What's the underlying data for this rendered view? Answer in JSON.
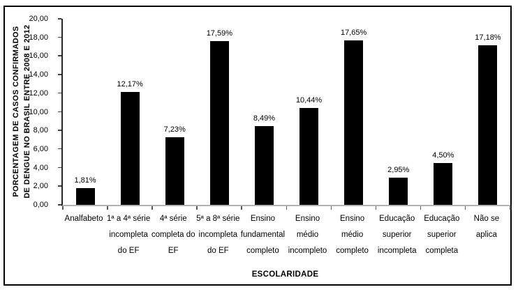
{
  "figure": {
    "background_color": "#ffffff",
    "frame_border_color": "#000000"
  },
  "chart_data": {
    "type": "bar",
    "title": "",
    "xlabel": "ESCOLARIDADE",
    "ylabel": "PORCENTAGEM DE CASOS CONFIRMADOS DE DENGUE NO BRASIL ENTRE 2008 E 2012",
    "ylabel_lines": {
      "line1": "PORCENTAGEM DE CASOS CONFIRMADOS",
      "line2": "DE DENGUE NO BRASIL ENTRE 2008 E 2012"
    },
    "ylim": [
      0,
      20
    ],
    "ytick_step": 2,
    "ytick_labels": [
      "0,00",
      "2,00",
      "4,00",
      "6,00",
      "8,00",
      "10,00",
      "12,00",
      "14,00",
      "16,00",
      "18,00",
      "20,00"
    ],
    "grid": false,
    "legend_position": "none",
    "bar_color": "#000000",
    "axis_line_color": "#262626",
    "baseline_color": "#b3b3b3",
    "tick_color": "#404040",
    "categories": [
      [
        "Analfabeto"
      ],
      [
        "1ª a 4ª série",
        "incompleta",
        "do EF"
      ],
      [
        "4ª série",
        "completa do",
        "EF"
      ],
      [
        "5ª a 8ª série",
        "incompleta",
        "do EF"
      ],
      [
        "Ensino",
        "fundamental",
        "completo"
      ],
      [
        "Ensino",
        "médio",
        "incompleto"
      ],
      [
        "Ensino",
        "médio",
        "completo"
      ],
      [
        "Educação",
        "superior",
        "incompleta"
      ],
      [
        "Educação",
        "superior",
        "completa"
      ],
      [
        "Não se",
        "aplica"
      ]
    ],
    "values": [
      1.81,
      12.17,
      7.23,
      17.59,
      8.49,
      10.44,
      17.65,
      2.95,
      4.5,
      17.18
    ],
    "value_labels": [
      "1,81%",
      "12,17%",
      "7,23%",
      "17,59%",
      "8,49%",
      "10,44%",
      "17,65%",
      "2,95%",
      "4,50%",
      "17,18%"
    ]
  }
}
